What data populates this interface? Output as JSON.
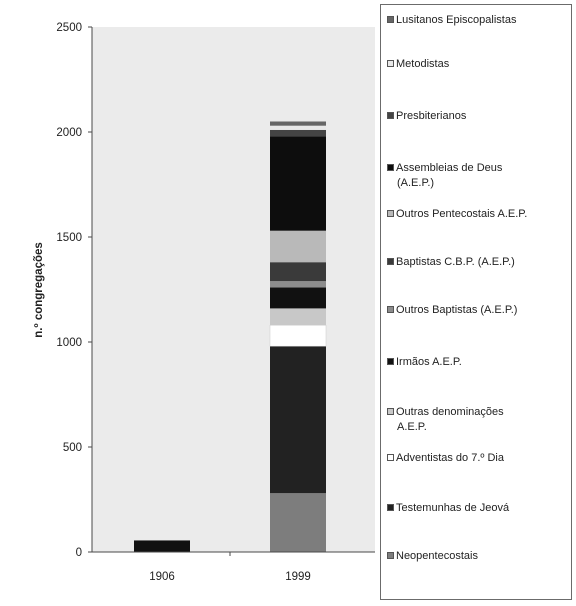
{
  "chart_data": {
    "type": "bar",
    "stacked": true,
    "categories": [
      "1906",
      "1999"
    ],
    "ylabel": "n.º congregações",
    "ylim": [
      0,
      2500
    ],
    "yticks": [
      0,
      500,
      1000,
      1500,
      2000,
      2500
    ],
    "grid": false,
    "legend_position": "right",
    "series": [
      {
        "name": "Neopentecostais",
        "color": "#7d7d7d",
        "values": [
          0,
          280
        ]
      },
      {
        "name": "Testemunhas de Jeová",
        "color": "#222222",
        "values": [
          0,
          700
        ]
      },
      {
        "name": "Adventistas do 7.º Dia",
        "color": "#ffffff",
        "values": [
          0,
          100
        ]
      },
      {
        "name": "Outras denominações A.E.P.",
        "color": "#c8c8c8",
        "values": [
          0,
          80
        ]
      },
      {
        "name": "Irmãos A.E.P.",
        "color": "#111111",
        "values": [
          55,
          100
        ]
      },
      {
        "name": "Outros Baptistas (A.E.P.)",
        "color": "#8c8c8c",
        "values": [
          0,
          30
        ]
      },
      {
        "name": "Baptistas C.B.P. (A.E.P.)",
        "color": "#3a3a3a",
        "values": [
          0,
          90
        ]
      },
      {
        "name": "Outros Pentecostais A.E.P.",
        "color": "#b9b9b9",
        "values": [
          0,
          150
        ]
      },
      {
        "name": "Assembleias de Deus (A.E.P.)",
        "color": "#0d0d0d",
        "values": [
          0,
          450
        ]
      },
      {
        "name": "Presbiterianos",
        "color": "#444444",
        "values": [
          0,
          30
        ]
      },
      {
        "name": "Metodistas",
        "color": "#e8e8e8",
        "values": [
          0,
          20
        ]
      },
      {
        "name": "Lusitanos Episcopalistas",
        "color": "#666666",
        "values": [
          0,
          20
        ]
      }
    ]
  },
  "colors": {
    "plot_background": "#ebebeb",
    "axis": "#4a4a4a"
  },
  "legend": {
    "items": [
      {
        "label_lines": [
          "Lusitanos Episcopalistas"
        ],
        "color": "#666666"
      },
      {
        "label_lines": [
          "Metodistas"
        ],
        "color": "#e8e8e8"
      },
      {
        "label_lines": [
          "Presbiterianos"
        ],
        "color": "#444444"
      },
      {
        "label_lines": [
          "Assembleias de Deus",
          "(A.E.P.)"
        ],
        "color": "#0d0d0d"
      },
      {
        "label_lines": [
          "Outros Pentecostais A.E.P."
        ],
        "color": "#b9b9b9"
      },
      {
        "label_lines": [
          "Baptistas C.B.P. (A.E.P.)"
        ],
        "color": "#3a3a3a"
      },
      {
        "label_lines": [
          "Outros Baptistas (A.E.P.)"
        ],
        "color": "#8c8c8c"
      },
      {
        "label_lines": [
          "Irmãos A.E.P."
        ],
        "color": "#111111"
      },
      {
        "label_lines": [
          "Outras denominações",
          "A.E.P."
        ],
        "color": "#c8c8c8"
      },
      {
        "label_lines": [
          "Adventistas do 7.º Dia"
        ],
        "color": "#ffffff"
      },
      {
        "label_lines": [
          "Testemunhas de Jeová"
        ],
        "color": "#222222"
      },
      {
        "label_lines": [
          "Neopentecostais"
        ],
        "color": "#7d7d7d"
      }
    ]
  }
}
